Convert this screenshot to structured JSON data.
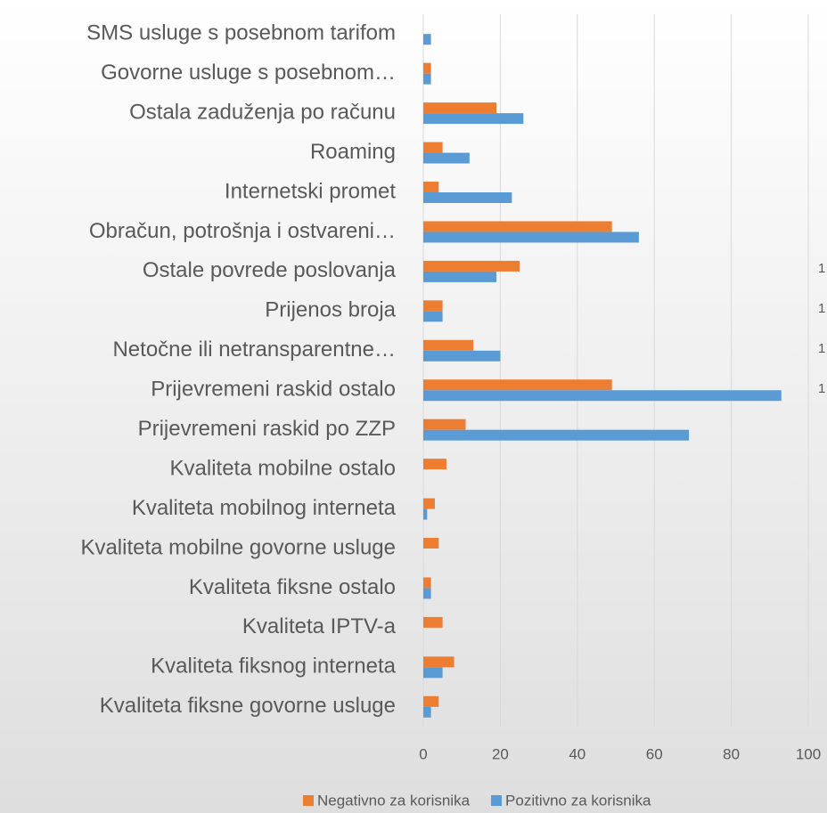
{
  "chart_data": {
    "type": "bar",
    "orientation": "horizontal",
    "categories": [
      "SMS usluge s posebnom tarifom",
      "Govorne usluge s posebnom…",
      "Ostala zaduženja po računu",
      "Roaming",
      "Internetski promet",
      "Obračun, potrošnja i ostvareni…",
      "Ostale povrede poslovanja",
      "Prijenos broja",
      "Netočne ili netransparentne…",
      "Prijevremeni raskid ostalo",
      "Prijevremeni raskid po ZZP",
      "Kvaliteta mobilne ostalo",
      "Kvaliteta mobilnog interneta",
      "Kvaliteta mobilne govorne usluge",
      "Kvaliteta fiksne ostalo",
      "Kvaliteta IPTV-a",
      "Kvaliteta fiksnog interneta",
      "Kvaliteta fiksne govorne usluge"
    ],
    "series": [
      {
        "name": "Negativno za korisnika",
        "color": "#ed7d31",
        "values": [
          0,
          2,
          19,
          5,
          4,
          49,
          25,
          5,
          13,
          49,
          11,
          6,
          3,
          4,
          2,
          5,
          8,
          4
        ]
      },
      {
        "name": "Pozitivno za korisnika",
        "color": "#5b9bd5",
        "values": [
          2,
          2,
          26,
          12,
          23,
          56,
          19,
          5,
          20,
          93,
          69,
          0,
          1,
          0,
          2,
          0,
          5,
          2
        ]
      }
    ],
    "xlim": [
      0,
      100
    ],
    "xticks": [
      0,
      20,
      40,
      60,
      80,
      100
    ],
    "grid": true,
    "legend": "bottom",
    "clipped_labels": [
      "1",
      "1",
      "1",
      "1"
    ]
  }
}
